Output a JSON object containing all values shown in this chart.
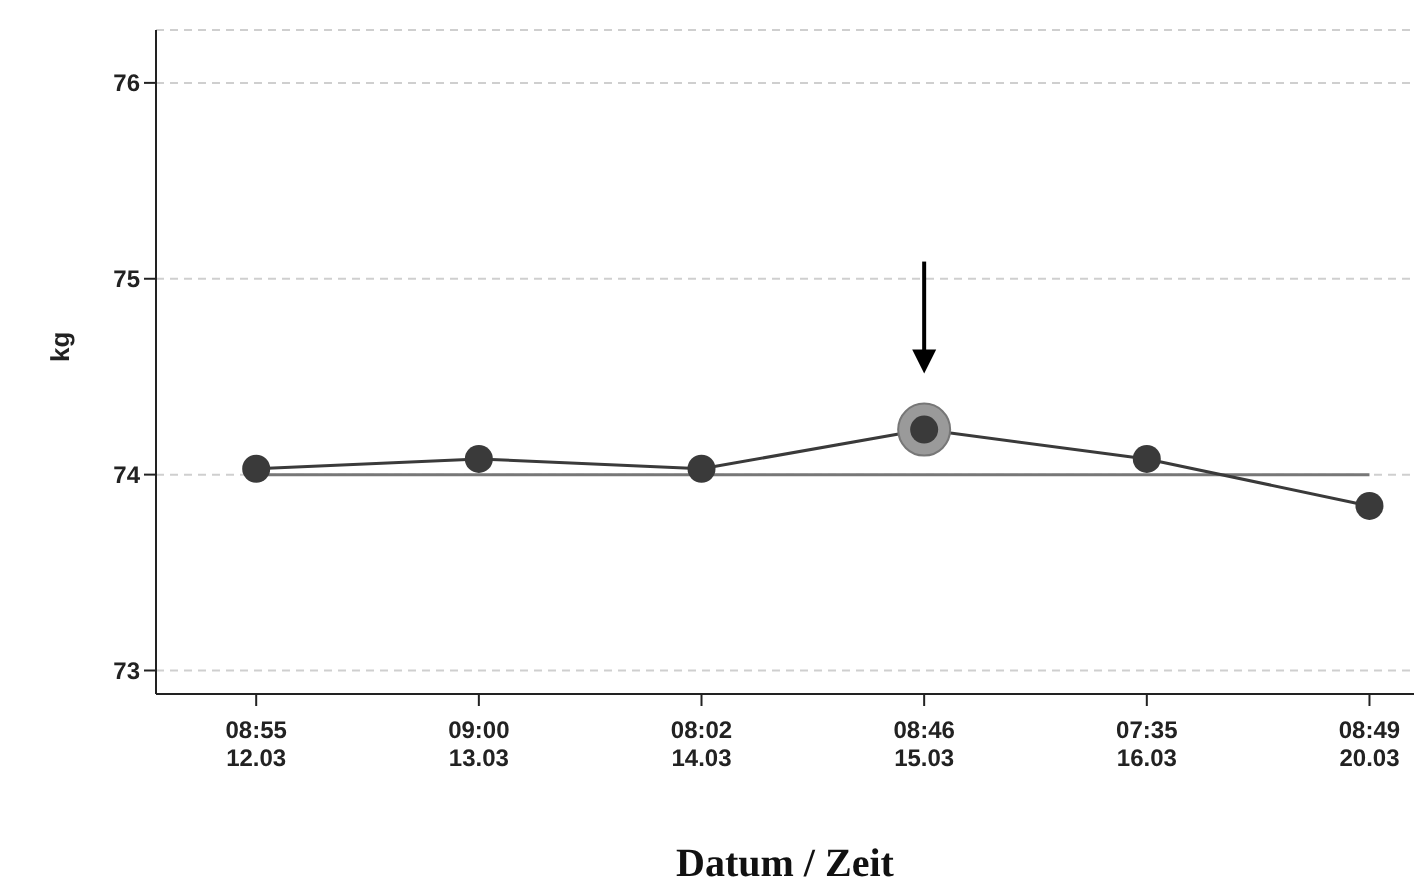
{
  "chart_data": {
    "type": "line",
    "xlabel": "Datum / Zeit",
    "ylabel": "kg",
    "categories": [
      "08:55\n12.03",
      "09:00\n13.03",
      "08:02\n14.03",
      "08:46\n15.03",
      "07:35\n16.03",
      "08:49\n20.03"
    ],
    "series": [
      {
        "color": "#3a3a3a",
        "values": [
          74.03,
          74.08,
          74.03,
          74.23,
          74.08,
          73.84
        ]
      }
    ],
    "ylim": [
      72.88,
      76.27
    ],
    "yticks": [
      73,
      74,
      75,
      76
    ],
    "grid": "y",
    "marker": "circle",
    "line_style": "solid",
    "ref_lines": [
      {
        "axis": "y",
        "value": 74,
        "color": "#777777"
      }
    ]
  }
}
